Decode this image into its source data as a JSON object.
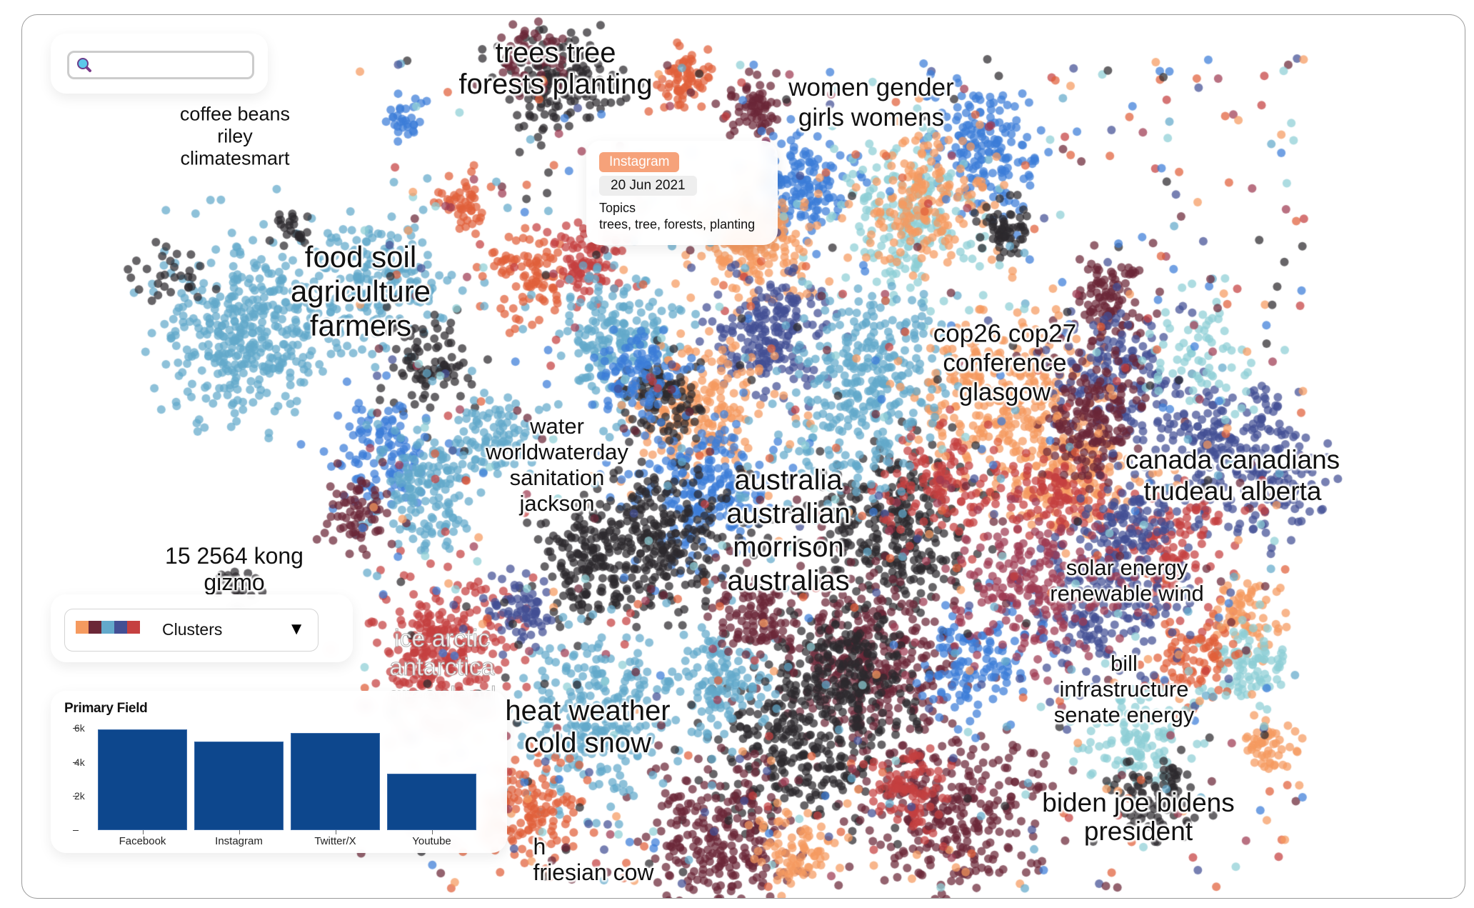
{
  "palette": [
    "#f59a5f",
    "#6b2737",
    "#63a9cb",
    "#434f94",
    "#c54040",
    "#2d2a2e",
    "#3b7dd8",
    "#8ecfd6",
    "#e0603a",
    "#9e3a52"
  ],
  "search": {
    "placeholder": "",
    "value": "",
    "icon": "search-icon"
  },
  "topic_labels": [
    {
      "lines": [
        "trees tree",
        "forests planting"
      ]
    },
    {
      "lines": [
        "women gender",
        "girls womens"
      ]
    },
    {
      "lines": [
        "coffee beans",
        "riley",
        "climatesmart"
      ]
    },
    {
      "lines": [
        "food soil",
        "agriculture",
        "farmers"
      ]
    },
    {
      "lines": [
        "cop26 cop27",
        "conference",
        "glasgow"
      ]
    },
    {
      "lines": [
        "water",
        "worldwaterday",
        "sanitation",
        "jackson"
      ]
    },
    {
      "lines": [
        "australia",
        "australian",
        "morrison",
        "australias"
      ]
    },
    {
      "lines": [
        "canada canadians",
        "trudeau alberta"
      ]
    },
    {
      "lines": [
        "15 2564 kong",
        "gizmo"
      ]
    },
    {
      "lines": [
        "solar energy",
        "renewable wind"
      ]
    },
    {
      "lines": [
        "ice arctic",
        "antarctica",
        "greenland"
      ]
    },
    {
      "lines": [
        "bill",
        "infrastructure",
        "senate energy"
      ]
    },
    {
      "lines": [
        "heat weather",
        "cold snow"
      ]
    },
    {
      "lines": [
        "biden joe bidens",
        "president"
      ]
    },
    {
      "lines": [
        "h",
        "friesian cow"
      ]
    }
  ],
  "tooltip": {
    "platform": "Instagram",
    "date": "20 Jun 2021",
    "topics_heading": "Topics",
    "topics": "trees, tree, forests, planting"
  },
  "color_by": {
    "selected": "Clusters",
    "swatches": [
      "#f59a5f",
      "#6b2737",
      "#63a9cb",
      "#434f94",
      "#c54040"
    ],
    "chevron": "▼"
  },
  "bar_chart": {
    "title": "Primary Field",
    "categories": [
      "Facebook",
      "Instagram",
      "Twitter/X",
      "Youtube"
    ],
    "values": [
      6000,
      5260,
      5780,
      3380
    ],
    "y_ticks": [
      "6k",
      "4k",
      "2k"
    ],
    "bar_color": "#0d478d"
  }
}
